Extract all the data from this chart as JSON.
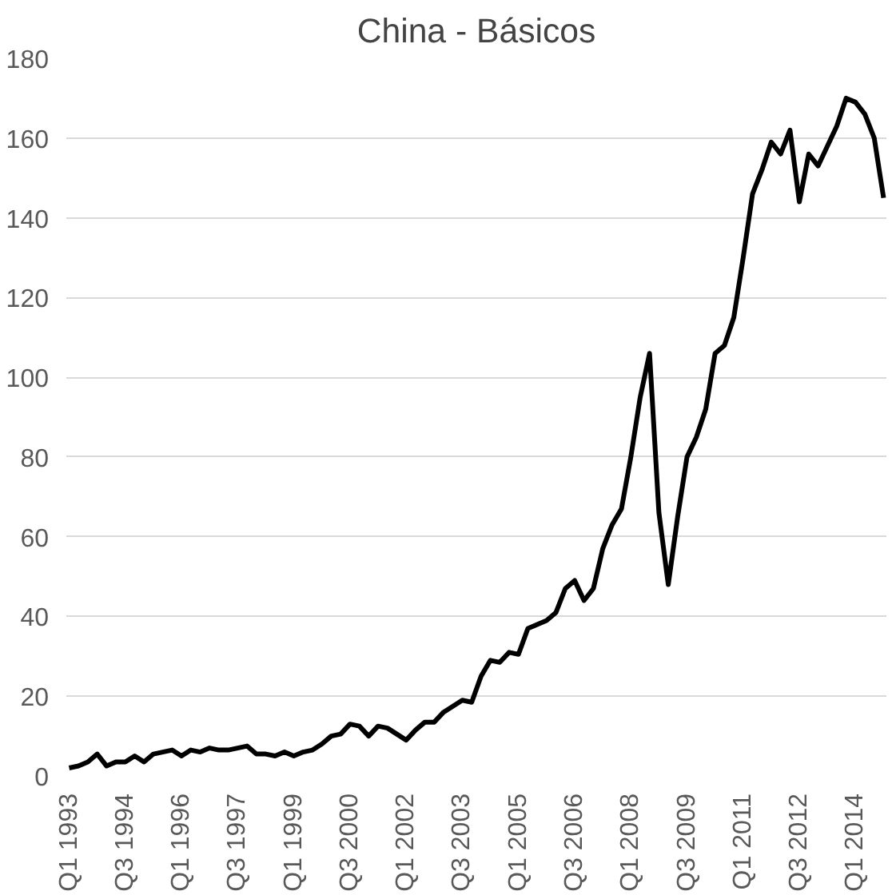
{
  "chart_data": {
    "type": "line",
    "title": "China - Básicos",
    "categories": [
      "Q1 1993",
      null,
      null,
      null,
      null,
      null,
      "Q3 1994",
      null,
      null,
      null,
      null,
      null,
      "Q1 1996",
      null,
      null,
      null,
      null,
      null,
      "Q3 1997",
      null,
      null,
      null,
      null,
      null,
      "Q1 1999",
      null,
      null,
      null,
      null,
      null,
      "Q3 2000",
      null,
      null,
      null,
      null,
      null,
      "Q1 2002",
      null,
      null,
      null,
      null,
      null,
      "Q3 2003",
      null,
      null,
      null,
      null,
      null,
      "Q1 2005",
      null,
      null,
      null,
      null,
      null,
      "Q3 2006",
      null,
      null,
      null,
      null,
      null,
      "Q1 2008",
      null,
      null,
      null,
      null,
      null,
      "Q3 2009",
      null,
      null,
      null,
      null,
      null,
      "Q1 2011",
      null,
      null,
      null,
      null,
      null,
      "Q3 2012",
      null,
      null,
      null,
      null,
      null,
      "Q1 2014",
      null,
      null,
      null
    ],
    "series": [
      {
        "color": "#000000",
        "values": [
          2,
          2.5,
          3.5,
          5.5,
          2.5,
          3.5,
          3.5,
          5,
          3.5,
          5.5,
          6,
          6.5,
          5,
          6.5,
          6,
          7,
          6.5,
          6.5,
          7,
          7.5,
          5.5,
          5.5,
          5,
          6,
          5,
          6,
          6.5,
          8,
          10,
          10.5,
          13,
          12.5,
          10,
          12.5,
          12,
          10.5,
          9,
          11.5,
          13.5,
          13.5,
          16,
          17.5,
          19,
          18.5,
          25,
          29,
          28.5,
          31,
          30.5,
          37,
          38,
          39,
          41,
          47,
          49,
          44,
          47,
          57,
          63,
          67,
          80,
          95,
          106,
          66,
          48,
          65,
          80,
          85,
          92,
          106,
          108,
          115,
          130,
          146,
          152,
          159,
          156,
          162,
          144,
          156,
          153,
          158,
          163,
          170,
          169,
          166,
          160,
          145
        ]
      }
    ],
    "ylim": [
      0,
      180
    ],
    "yticks": [
      0,
      20,
      40,
      60,
      80,
      100,
      120,
      140,
      160,
      180
    ],
    "grid": "y",
    "marker": "none",
    "line_style": "solid"
  }
}
